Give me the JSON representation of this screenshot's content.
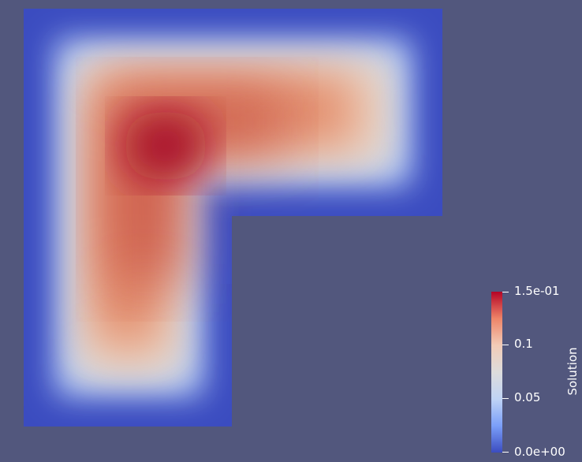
{
  "scalar_bar": {
    "title": "Solution",
    "ticks": [
      "1.5e-01",
      "0.1",
      "0.05",
      "0.0e+00"
    ],
    "tick_values": [
      0.15,
      0.1,
      0.05,
      0.0
    ],
    "range": [
      0.0,
      0.15
    ],
    "colormap": "Cool to Warm",
    "colors": [
      "#3b4cc0",
      "#7b9ff9",
      "#c0d4f5",
      "#dddcdc",
      "#f2cbb7",
      "#ee8468",
      "#b40426"
    ]
  },
  "background_color": "#52577d"
}
